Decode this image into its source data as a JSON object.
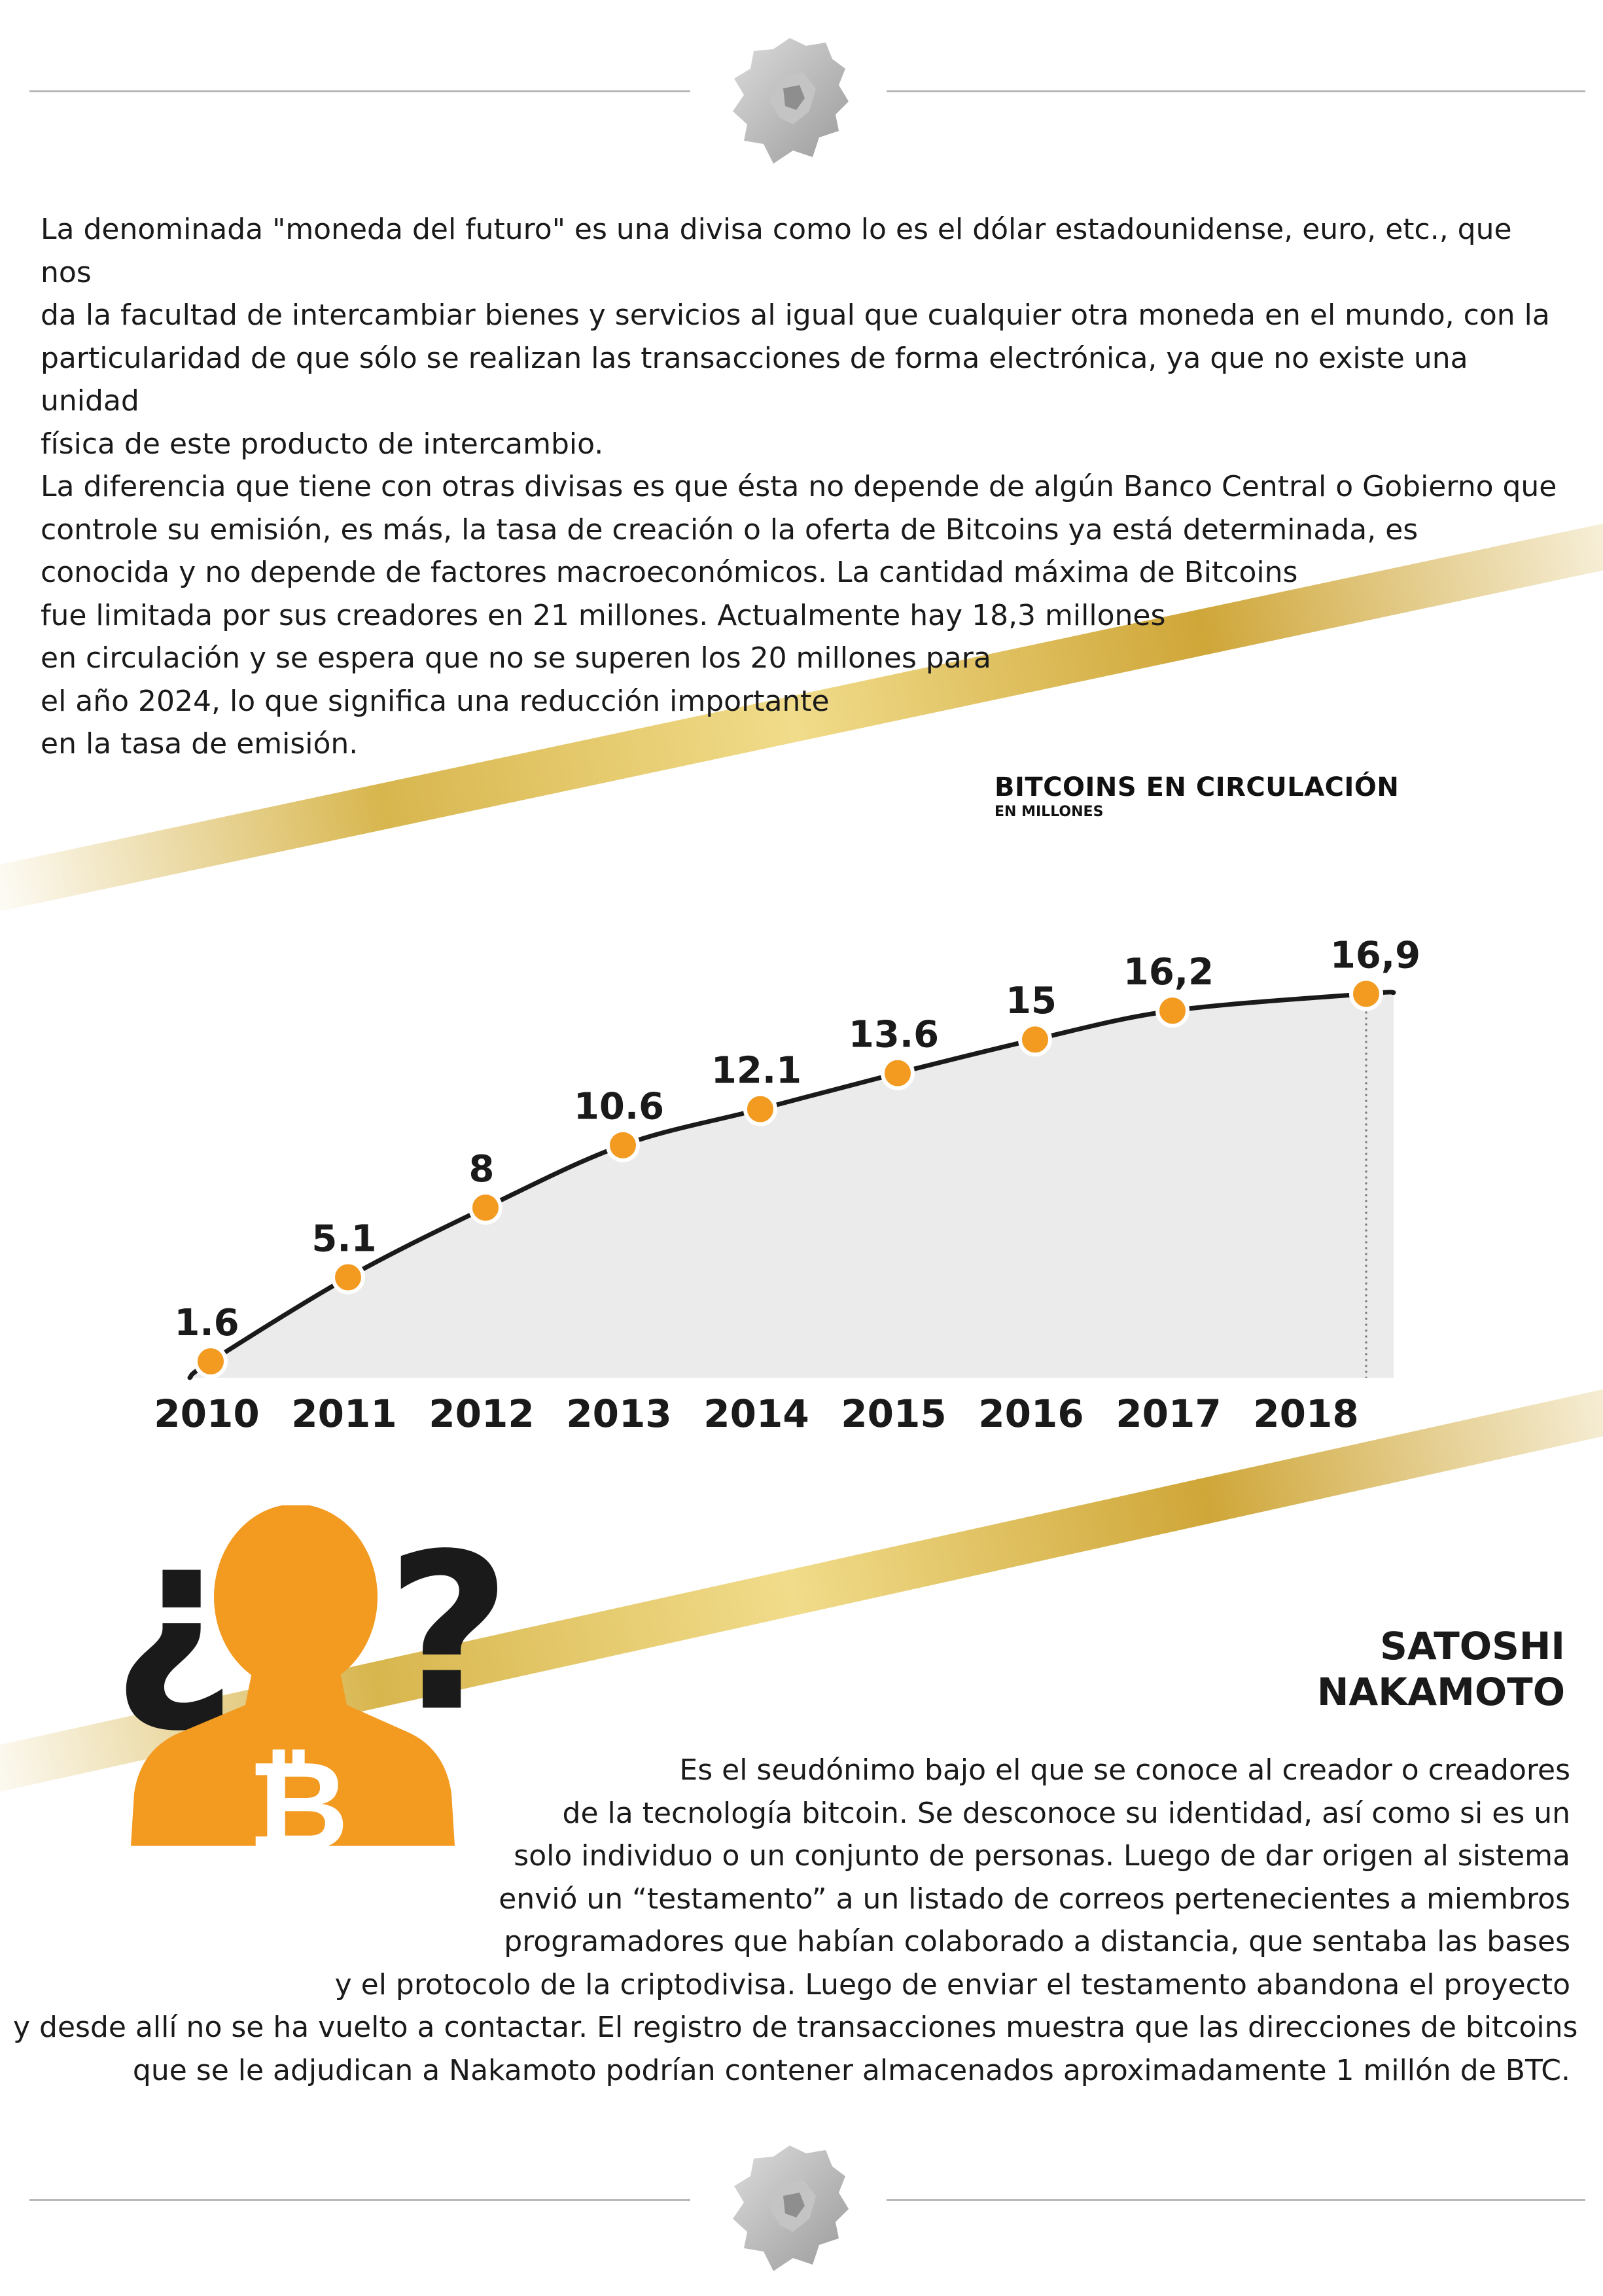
{
  "intro": {
    "lines": [
      "La denominada \"moneda del futuro\" es una divisa como lo es el dólar estadounidense, euro, etc., que nos",
      "da la facultad de intercambiar bienes y servicios al igual que cualquier otra moneda en el mundo, con la",
      "particularidad de que sólo se realizan las transacciones de forma electrónica, ya que no existe una unidad",
      "física de este producto de intercambio.",
      "La diferencia que tiene con otras divisas es que ésta no depende de algún Banco Central o Gobierno que",
      "controle su emisión, es más, la tasa de creación o la oferta de Bitcoins ya está determinada, es",
      "conocida y no depende de factores macroeconómicos. La cantidad máxima de Bitcoins",
      "fue limitada por sus creadores en 21 millones. Actualmente hay 18,3 millones",
      "en circulación y se espera que no se superen los 20 millones para",
      "el año 2024, lo que significa una reducción importante",
      "en la tasa de emisión."
    ]
  },
  "chart_data": {
    "type": "area",
    "title": "BITCOINS EN CIRCULACIÓN",
    "subtitle": "EN MILLONES",
    "categories": [
      "2010",
      "2011",
      "2012",
      "2013",
      "2014",
      "2015",
      "2016",
      "2017",
      "2018"
    ],
    "values": [
      1.6,
      5.1,
      8,
      10.6,
      12.1,
      13.6,
      15,
      16.2,
      16.9
    ],
    "data_labels": [
      "1.6",
      "5.1",
      "8",
      "10.6",
      "12.1",
      "13.6",
      "15",
      "16,2",
      "16,9"
    ],
    "colors": {
      "line": "#1a1a1a",
      "area": "#ebebeb",
      "marker": "#f39a21"
    },
    "grid": false
  },
  "nakamoto": {
    "title_line1": "SATOSHI",
    "title_line2": "NAKAMOTO",
    "lines": [
      "Es el seudónimo bajo el que se conoce al creador o creadores",
      "de la tecnología bitcoin. Se desconoce su identidad, así como si es un",
      "solo individuo o un conjunto de personas. Luego de dar origen al sistema",
      "envió un “testamento” a un listado de correos pertenecientes a miembros",
      "programadores que habían colaborado a distancia, que sentaba las bases",
      "y el protocolo de la criptodivisa. Luego de enviar el testamento abandona el proyecto",
      "y desde allí no se ha vuelto a contactar. El registro de transacciones muestra que las direcciones de bitcoins",
      "que se le adjudican a Nakamoto podrían contener almacenados aproximadamente 1 millón de BTC."
    ],
    "question_open": "¿",
    "question_close": "?",
    "bitcoin_symbol": "₿"
  },
  "icons": {
    "header": "lion-head-icon",
    "footer": "lion-head-icon",
    "person": "person-silhouette-icon"
  }
}
